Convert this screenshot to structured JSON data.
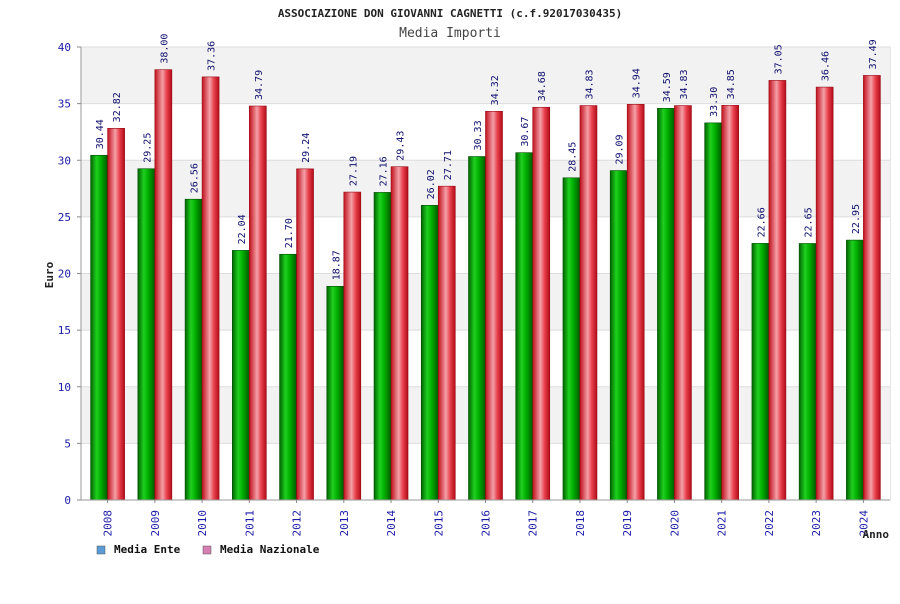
{
  "chart_data": {
    "type": "bar",
    "title": "ASSOCIAZIONE DON GIOVANNI CAGNETTI (c.f.92017030435)",
    "subtitle": "Media Importi",
    "xlabel": "Anno",
    "ylabel": "Euro",
    "ylim": [
      0,
      40
    ],
    "yticks": [
      0,
      5,
      10,
      15,
      20,
      25,
      30,
      35,
      40
    ],
    "grid": true,
    "legend_position": "bottom-left",
    "categories": [
      "2008",
      "2009",
      "2010",
      "2011",
      "2012",
      "2013",
      "2014",
      "2015",
      "2016",
      "2017",
      "2018",
      "2019",
      "2020",
      "2021",
      "2022",
      "2023",
      "2024"
    ],
    "series": [
      {
        "name": "Media Ente",
        "color": "#00b000",
        "values": [
          30.44,
          29.25,
          26.56,
          22.04,
          21.7,
          18.87,
          27.16,
          26.02,
          30.33,
          30.67,
          28.45,
          29.09,
          34.59,
          33.3,
          22.66,
          22.65,
          22.95
        ],
        "labels": [
          "30.44",
          "29.25",
          "26.56",
          "22.04",
          "21.70",
          "18.87",
          "27.16",
          "26.02",
          "30.33",
          "30.67",
          "28.45",
          "29.09",
          "34.59",
          "33.30",
          "22.66",
          "22.65",
          "22.95"
        ]
      },
      {
        "name": "Media Nazionale",
        "color": "#e0202e",
        "values": [
          32.82,
          38.0,
          37.36,
          34.79,
          29.24,
          27.19,
          29.43,
          27.71,
          34.32,
          34.68,
          34.83,
          34.94,
          34.83,
          34.85,
          37.05,
          36.46,
          37.49
        ],
        "labels": [
          "32.82",
          "38.00",
          "37.36",
          "34.79",
          "29.24",
          "27.19",
          "29.43",
          "27.71",
          "34.32",
          "34.68",
          "34.83",
          "34.94",
          "34.83",
          "34.85",
          "37.05",
          "36.46",
          "37.49"
        ]
      }
    ],
    "legend": [
      {
        "label": "Media Ente",
        "swatch_color": "#5b9bd5"
      },
      {
        "label": "Media Nazionale",
        "swatch_color": "#d67fb5"
      }
    ]
  }
}
